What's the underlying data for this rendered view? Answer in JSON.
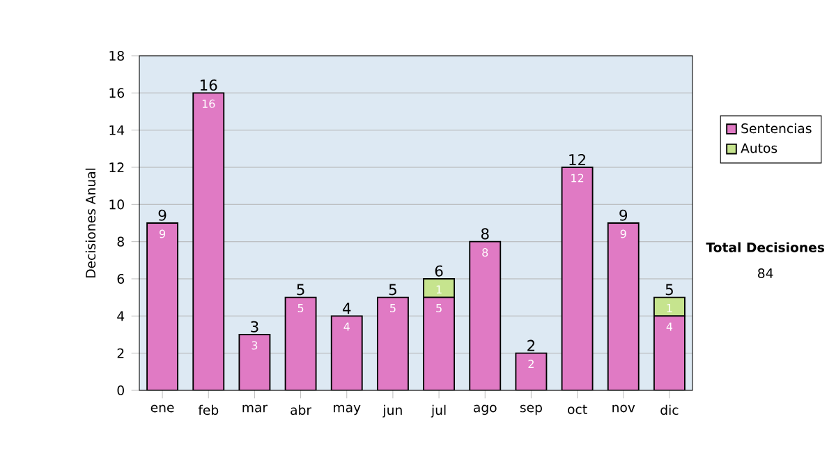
{
  "chart_data": {
    "type": "bar",
    "stacked": true,
    "ylabel": "Decisiones Anual",
    "categories": [
      "ene",
      "feb",
      "mar",
      "abr",
      "may",
      "jun",
      "jul",
      "ago",
      "sep",
      "oct",
      "nov",
      "dic"
    ],
    "series": [
      {
        "name": "Sentencias",
        "color": "#e07ac4",
        "values": [
          9,
          16,
          3,
          5,
          4,
          5,
          5,
          8,
          2,
          12,
          9,
          4
        ],
        "value_labels": [
          "9",
          "16",
          "3",
          "5",
          "4",
          "5",
          "5",
          "8",
          "2",
          "12",
          "9",
          "4"
        ]
      },
      {
        "name": "Autos",
        "color": "#c6e48e",
        "values": [
          0,
          0,
          0,
          0,
          0,
          0,
          1,
          0,
          0,
          0,
          0,
          1
        ],
        "value_labels": [
          null,
          null,
          null,
          null,
          null,
          null,
          "1",
          null,
          null,
          null,
          null,
          "1"
        ]
      }
    ],
    "totals": [
      "9",
      "16",
      "3",
      "5",
      "4",
      "5",
      "6",
      "8",
      "2",
      "12",
      "9",
      "5"
    ],
    "ylim": [
      0,
      18
    ],
    "yticks": [
      0,
      2,
      4,
      6,
      8,
      10,
      12,
      14,
      16,
      18
    ],
    "grid": "y",
    "legend": "right",
    "annotations": [
      "Total Decisiones",
      "84"
    ]
  }
}
